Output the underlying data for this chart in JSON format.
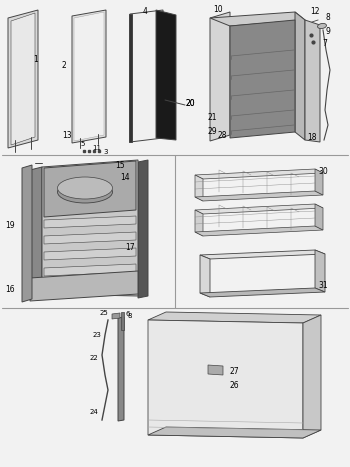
{
  "bg_color": "#f2f2f2",
  "line_color": "#444444",
  "label_color": "#000000",
  "divider_color": "#999999",
  "part_fill_light": "#e8e8e8",
  "part_fill_mid": "#c8c8c8",
  "part_fill_dark": "#888888",
  "part_fill_white": "#f5f5f5",
  "part_fill_black": "#222222"
}
